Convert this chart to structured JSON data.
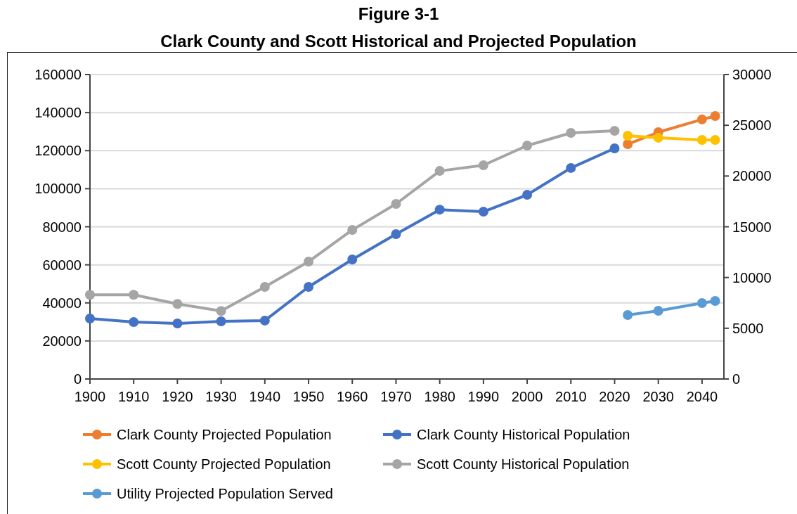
{
  "chart_data": {
    "type": "line",
    "title": "Figure 3-1",
    "subtitle": "Clark County and Scott Historical and Projected Population",
    "xlim": [
      1900,
      2045
    ],
    "xticks": [
      1900,
      1910,
      1920,
      1930,
      1940,
      1950,
      1960,
      1970,
      1980,
      1990,
      2000,
      2010,
      2020,
      2030,
      2040
    ],
    "ylim": [
      0,
      160000
    ],
    "yticks": [
      0,
      20000,
      40000,
      60000,
      80000,
      100000,
      120000,
      140000,
      160000
    ],
    "y2lim": [
      0,
      30000
    ],
    "y2ticks": [
      0,
      5000,
      10000,
      15000,
      20000,
      25000,
      30000
    ],
    "grid": "y",
    "legend": "bottom",
    "marker": "circle",
    "line_style": "solid",
    "series": [
      {
        "name": "Clark County Projected Population",
        "color": "#ed7d31",
        "x": [
          2023,
          2030,
          2040,
          2043
        ],
        "values": [
          123400,
          129700,
          136400,
          138200
        ]
      },
      {
        "name": "Clark County Historical Population",
        "color": "#4472c4",
        "x": [
          1900,
          1910,
          1920,
          1930,
          1940,
          1950,
          1960,
          1970,
          1980,
          1990,
          2000,
          2010,
          2020
        ],
        "values": [
          31800,
          29900,
          29200,
          30300,
          30700,
          48400,
          62800,
          76100,
          89000,
          87900,
          96800,
          110900,
          121200
        ]
      },
      {
        "name": "Scott County Projected Population",
        "color": "#ffc000",
        "axis": "y2",
        "x": [
          2023,
          2030,
          2040,
          2043
        ],
        "values": [
          23970,
          23770,
          23560,
          23560
        ]
      },
      {
        "name": "Scott County Historical Population",
        "color": "#a5a5a5",
        "axis": "y2",
        "x": [
          1900,
          1910,
          1920,
          1930,
          1940,
          1950,
          1960,
          1970,
          1980,
          1990,
          2000,
          2010,
          2020
        ],
        "values": [
          8300,
          8300,
          7400,
          6700,
          9080,
          11570,
          14690,
          17250,
          20500,
          21060,
          23000,
          24250,
          24450
        ]
      },
      {
        "name": "Utility Projected Population Served",
        "color": "#5b9bd5",
        "axis": "y2",
        "x": [
          2023,
          2030,
          2040,
          2043
        ],
        "values": [
          6300,
          6720,
          7480,
          7690
        ]
      }
    ]
  }
}
